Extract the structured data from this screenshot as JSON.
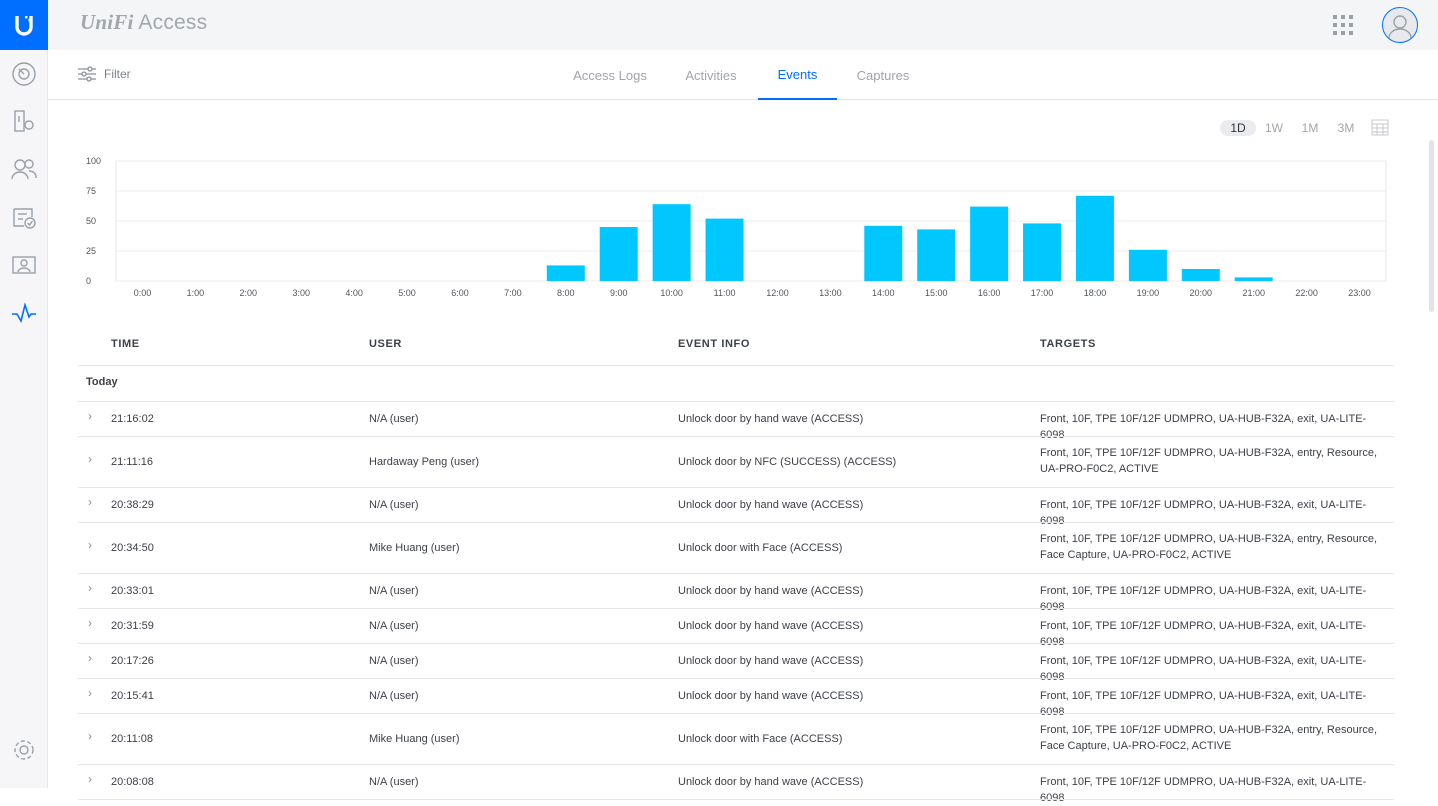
{
  "app": {
    "brand_prefix": "UniFi",
    "brand_name": "Access"
  },
  "colors": {
    "accent": "#006fff",
    "bar": "#00c8ff"
  },
  "sidebar": {
    "items": [
      {
        "icon": "dashboard-icon"
      },
      {
        "icon": "doors-icon"
      },
      {
        "icon": "users-icon"
      },
      {
        "icon": "policies-icon"
      },
      {
        "icon": "visitors-icon"
      },
      {
        "icon": "events-icon",
        "active": true
      },
      {
        "icon": "settings-icon"
      }
    ]
  },
  "subbar": {
    "filter_label": "Filter",
    "tabs": [
      "Access Logs",
      "Activities",
      "Events",
      "Captures"
    ],
    "active_tab": "Events"
  },
  "ranges": [
    "1D",
    "1W",
    "1M",
    "3M"
  ],
  "active_range": "1D",
  "chart_data": {
    "type": "bar",
    "categories": [
      "0:00",
      "1:00",
      "2:00",
      "3:00",
      "4:00",
      "5:00",
      "6:00",
      "7:00",
      "8:00",
      "9:00",
      "10:00",
      "11:00",
      "12:00",
      "13:00",
      "14:00",
      "15:00",
      "16:00",
      "17:00",
      "18:00",
      "19:00",
      "20:00",
      "21:00",
      "22:00",
      "23:00"
    ],
    "values": [
      0,
      0,
      0,
      0,
      0,
      0,
      0,
      0,
      13,
      45,
      64,
      52,
      0,
      0,
      46,
      43,
      62,
      48,
      71,
      26,
      10,
      3,
      0,
      0
    ],
    "yticks": [
      "0",
      "25",
      "50",
      "75",
      "100"
    ],
    "ylim": [
      0,
      100
    ],
    "grid": true
  },
  "table": {
    "headers": {
      "time": "TIME",
      "user": "USER",
      "event": "EVENT INFO",
      "targets": "TARGETS"
    },
    "group_label": "Today",
    "rows": [
      {
        "time": "21:16:02",
        "user": "N/A (user)",
        "event": "Unlock door by hand wave (ACCESS)",
        "targets": "Front, 10F, TPE 10F/12F UDMPRO, UA-HUB-F32A, exit, UA-LITE-6098"
      },
      {
        "time": "21:11:16",
        "user": "Hardaway Peng (user)",
        "event": "Unlock door by NFC (SUCCESS) (ACCESS)",
        "targets": "Front, 10F, TPE 10F/12F UDMPRO, UA-HUB-F32A, entry, Resource, UA-PRO-F0C2, ACTIVE"
      },
      {
        "time": "20:38:29",
        "user": "N/A (user)",
        "event": "Unlock door by hand wave (ACCESS)",
        "targets": "Front, 10F, TPE 10F/12F UDMPRO, UA-HUB-F32A, exit, UA-LITE-6098"
      },
      {
        "time": "20:34:50",
        "user": "Mike Huang (user)",
        "event": "Unlock door with Face (ACCESS)",
        "targets": "Front, 10F, TPE 10F/12F UDMPRO, UA-HUB-F32A, entry, Resource, Face Capture, UA-PRO-F0C2, ACTIVE"
      },
      {
        "time": "20:33:01",
        "user": "N/A (user)",
        "event": "Unlock door by hand wave (ACCESS)",
        "targets": "Front, 10F, TPE 10F/12F UDMPRO, UA-HUB-F32A, exit, UA-LITE-6098"
      },
      {
        "time": "20:31:59",
        "user": "N/A (user)",
        "event": "Unlock door by hand wave (ACCESS)",
        "targets": "Front, 10F, TPE 10F/12F UDMPRO, UA-HUB-F32A, exit, UA-LITE-6098"
      },
      {
        "time": "20:17:26",
        "user": "N/A (user)",
        "event": "Unlock door by hand wave (ACCESS)",
        "targets": "Front, 10F, TPE 10F/12F UDMPRO, UA-HUB-F32A, exit, UA-LITE-6098"
      },
      {
        "time": "20:15:41",
        "user": "N/A (user)",
        "event": "Unlock door by hand wave (ACCESS)",
        "targets": "Front, 10F, TPE 10F/12F UDMPRO, UA-HUB-F32A, exit, UA-LITE-6098"
      },
      {
        "time": "20:11:08",
        "user": "Mike Huang (user)",
        "event": "Unlock door with Face (ACCESS)",
        "targets": "Front, 10F, TPE 10F/12F UDMPRO, UA-HUB-F32A, entry, Resource, Face Capture, UA-PRO-F0C2, ACTIVE"
      },
      {
        "time": "20:08:08",
        "user": "N/A (user)",
        "event": "Unlock door by hand wave (ACCESS)",
        "targets": "Front, 10F, TPE 10F/12F UDMPRO, UA-HUB-F32A, exit, UA-LITE-6098"
      }
    ]
  }
}
